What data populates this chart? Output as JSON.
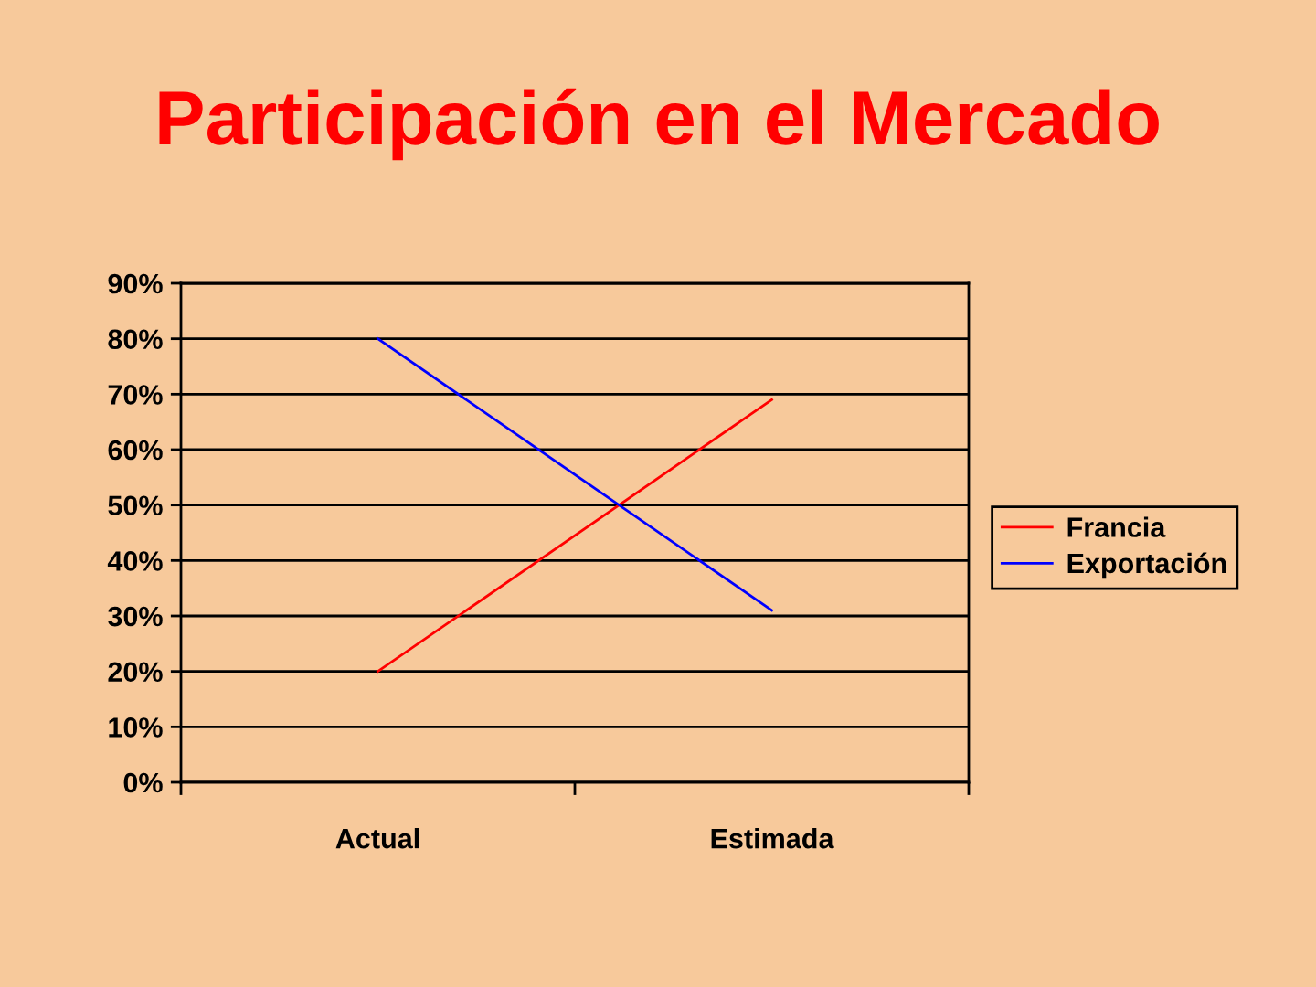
{
  "chart_data": {
    "type": "line",
    "title": "Participación en el Mercado",
    "categories": [
      "Actual",
      "Estimada"
    ],
    "series": [
      {
        "name": "Francia",
        "color": "#ff0000",
        "values": [
          20,
          69
        ]
      },
      {
        "name": "Exportación",
        "color": "#0000ff",
        "values": [
          80,
          31
        ]
      }
    ],
    "ylim": [
      0,
      90
    ],
    "yticks": [
      {
        "value": 0,
        "label": "0%"
      },
      {
        "value": 10,
        "label": "10%"
      },
      {
        "value": 20,
        "label": "20%"
      },
      {
        "value": 30,
        "label": "30%"
      },
      {
        "value": 40,
        "label": "40%"
      },
      {
        "value": 50,
        "label": "50%"
      },
      {
        "value": 60,
        "label": "60%"
      },
      {
        "value": 70,
        "label": "70%"
      },
      {
        "value": 80,
        "label": "80%"
      },
      {
        "value": 90,
        "label": "90%"
      }
    ],
    "grid": "y",
    "legend": "right",
    "marker": "none",
    "line_style": "solid"
  }
}
